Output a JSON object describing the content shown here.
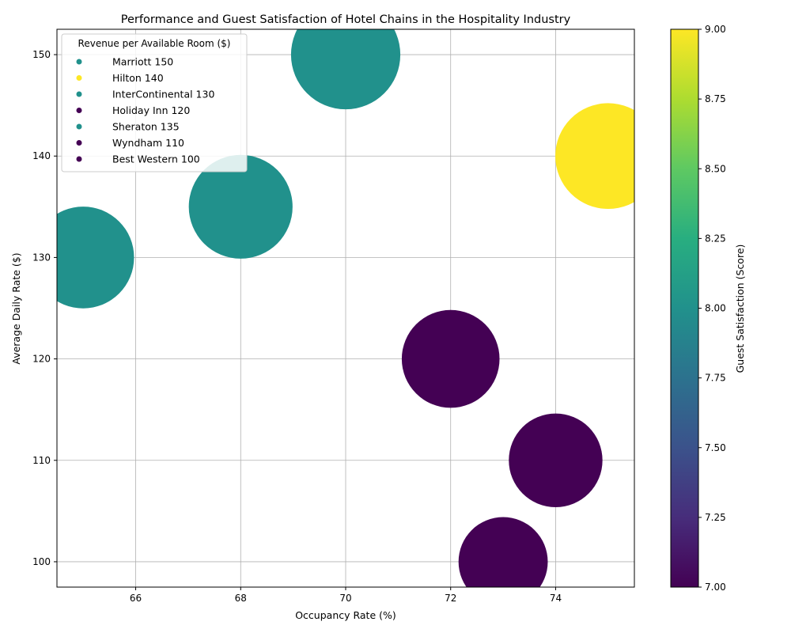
{
  "chart_data": {
    "type": "scatter",
    "title": "Performance and Guest Satisfaction of Hotel Chains in the Hospitality Industry",
    "xlabel": "Occupancy Rate (%)",
    "ylabel": "Average Daily Rate ($)",
    "xlim": [
      64.5,
      75.5
    ],
    "ylim": [
      97.5,
      152.5
    ],
    "x_ticks": [
      66,
      68,
      70,
      72,
      74
    ],
    "y_ticks": [
      100,
      110,
      120,
      130,
      140,
      150
    ],
    "grid": true,
    "legend_title": "Revenue per Available Room ($)",
    "legend_position": "top-left",
    "colorbar": {
      "label": "Guest Satisfaction (Score)",
      "range": [
        7.0,
        9.0
      ],
      "ticks": [
        "7.00",
        "7.25",
        "7.50",
        "7.75",
        "8.00",
        "8.25",
        "8.50",
        "8.75",
        "9.00"
      ],
      "colormap": "viridis"
    },
    "points": [
      {
        "label": "Marriott 150",
        "occupancy": 70,
        "adr": 150,
        "revpar": 150,
        "satisfaction": 8
      },
      {
        "label": "Hilton 140",
        "occupancy": 75,
        "adr": 140,
        "revpar": 140,
        "satisfaction": 9
      },
      {
        "label": "InterContinental 130",
        "occupancy": 65,
        "adr": 130,
        "revpar": 130,
        "satisfaction": 8
      },
      {
        "label": "Holiday Inn 120",
        "occupancy": 72,
        "adr": 120,
        "revpar": 120,
        "satisfaction": 7
      },
      {
        "label": "Sheraton 135",
        "occupancy": 68,
        "adr": 135,
        "revpar": 135,
        "satisfaction": 8
      },
      {
        "label": "Wyndham 110",
        "occupancy": 74,
        "adr": 110,
        "revpar": 110,
        "satisfaction": 7
      },
      {
        "label": "Best Western 100",
        "occupancy": 73,
        "adr": 100,
        "revpar": 100,
        "satisfaction": 7
      }
    ]
  }
}
